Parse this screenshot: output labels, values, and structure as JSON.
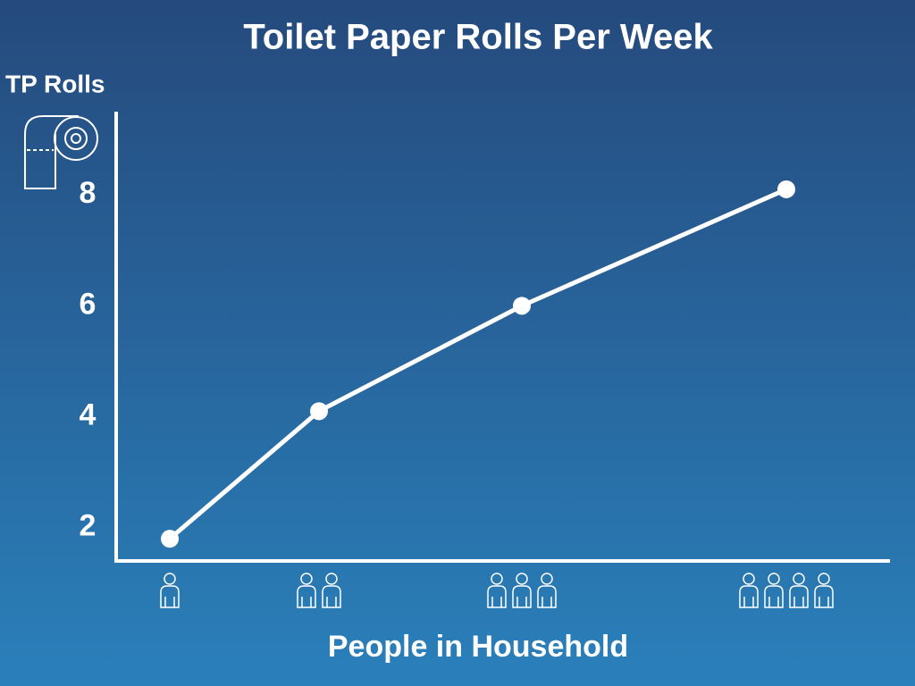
{
  "chart_data": {
    "type": "line",
    "title": "Toilet Paper Rolls Per Week",
    "y_label": "TP Rolls",
    "x_label": "People in Household",
    "categories": [
      null,
      null,
      null,
      null
    ],
    "values": [
      1.8,
      4.1,
      6.0,
      8.1
    ],
    "color": "#ffffff",
    "ylim": [
      1.4,
      9.5
    ],
    "yticks": [
      2,
      4,
      6,
      8
    ],
    "grid": false
  }
}
